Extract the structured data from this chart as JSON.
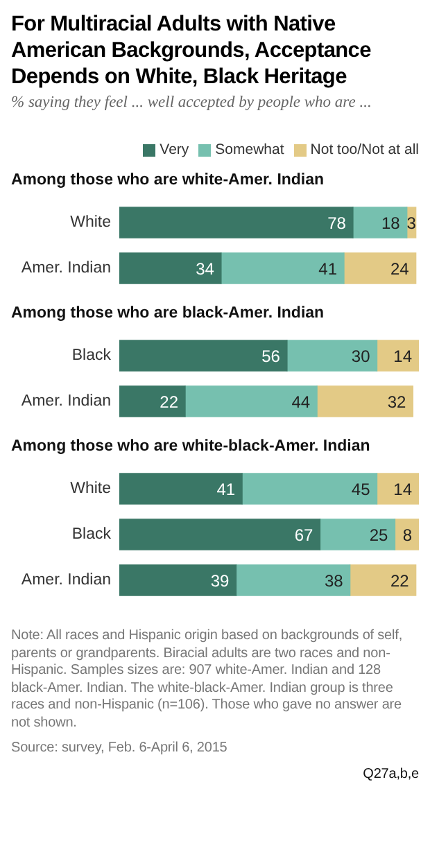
{
  "chart_data": [
    {
      "type": "bar",
      "orientation": "horizontal",
      "stacked": true,
      "title": "For Multiracial Adults with Native American Backgrounds, Acceptance Depends on White, Black Heritage",
      "subtitle": "% saying they feel ... well accepted by people who are ...",
      "annotations": [
        "Among those who are white-Amer. Indian"
      ],
      "categories": [
        "White",
        "Amer. Indian"
      ],
      "series": [
        {
          "name": "Very",
          "color": "#3a7766",
          "values": [
            78,
            34
          ]
        },
        {
          "name": "Somewhat",
          "color": "#76c0af",
          "values": [
            18,
            41
          ]
        },
        {
          "name": "Not too/Not at all",
          "color": "#e3ca86",
          "values": [
            3,
            24
          ]
        }
      ],
      "tick_labels": "y",
      "data_labels": true,
      "legend": "top right"
    },
    {
      "type": "bar",
      "orientation": "horizontal",
      "stacked": true,
      "title": "Among those who are black-Amer. Indian",
      "categories": [
        "Black",
        "Amer. Indian"
      ],
      "series": [
        {
          "color": "#3a7766",
          "values": [
            56,
            22
          ]
        },
        {
          "color": "#76c0af",
          "values": [
            30,
            44
          ]
        },
        {
          "color": "#e3ca86",
          "values": [
            14,
            32
          ]
        }
      ],
      "tick_labels": "y",
      "data_labels": true
    },
    {
      "type": "bar",
      "orientation": "horizontal",
      "stacked": true,
      "title": "Among those who are white-black-Amer. Indian",
      "categories": [
        "White",
        "Black",
        "Amer. Indian"
      ],
      "series": [
        {
          "color": "#3a7766",
          "values": [
            41,
            67,
            39
          ]
        },
        {
          "color": "#76c0af",
          "values": [
            45,
            25,
            38
          ]
        },
        {
          "color": "#e3ca86",
          "values": [
            14,
            8,
            22
          ]
        }
      ],
      "tick_labels": "y",
      "data_labels": true,
      "annotations": [
        "Note: All races and Hispanic origin based on backgrounds of self, parents or grandparents. Biracial adults are two races and non-Hispanic. Samples sizes are: 907 white-Amer. Indian and 128 black-Amer. Indian. The white-black-Amer. Indian group is three races and non-Hispanic (n=106). Those who gave no answer are not shown.",
        "Source: survey, Feb. 6-April 6, 2015",
        "Q27a,b,e"
      ]
    }
  ]
}
